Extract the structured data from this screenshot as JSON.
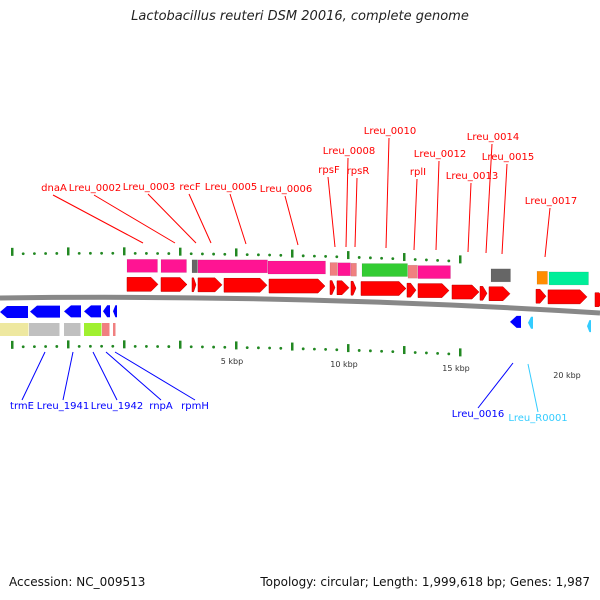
{
  "title": "Lactobacillus reuteri DSM 20016, complete genome",
  "footer": {
    "accession": "Accession: NC_009513",
    "summary": "Topology: circular; Length: 1,999,618 bp; Genes: 1,987"
  },
  "scale_labels": [
    "5 kbp",
    "10 kbp",
    "15 kbp",
    "20 kbp"
  ],
  "forward_labels": [
    "dnaA",
    "Lreu_0002",
    "Lreu_0003",
    "recF",
    "Lreu_0005",
    "Lreu_0006",
    "rpsF",
    "Lreu_0008",
    "rpsR",
    "Lreu_0010",
    "rplI",
    "Lreu_0012",
    "Lreu_0013",
    "Lreu_0014",
    "Lreu_0015",
    "Lreu_0017"
  ],
  "reverse_labels": [
    "trmE",
    "Lreu_1941",
    "Lreu_1942",
    "rnpA",
    "rpmH",
    "Lreu_0016",
    "Lreu_R0001"
  ],
  "colors": {
    "forward": "#ff0000",
    "reverse": "#0000ff",
    "rna": "#33ccff",
    "backbone": "#888888",
    "tick": "#228822"
  }
}
